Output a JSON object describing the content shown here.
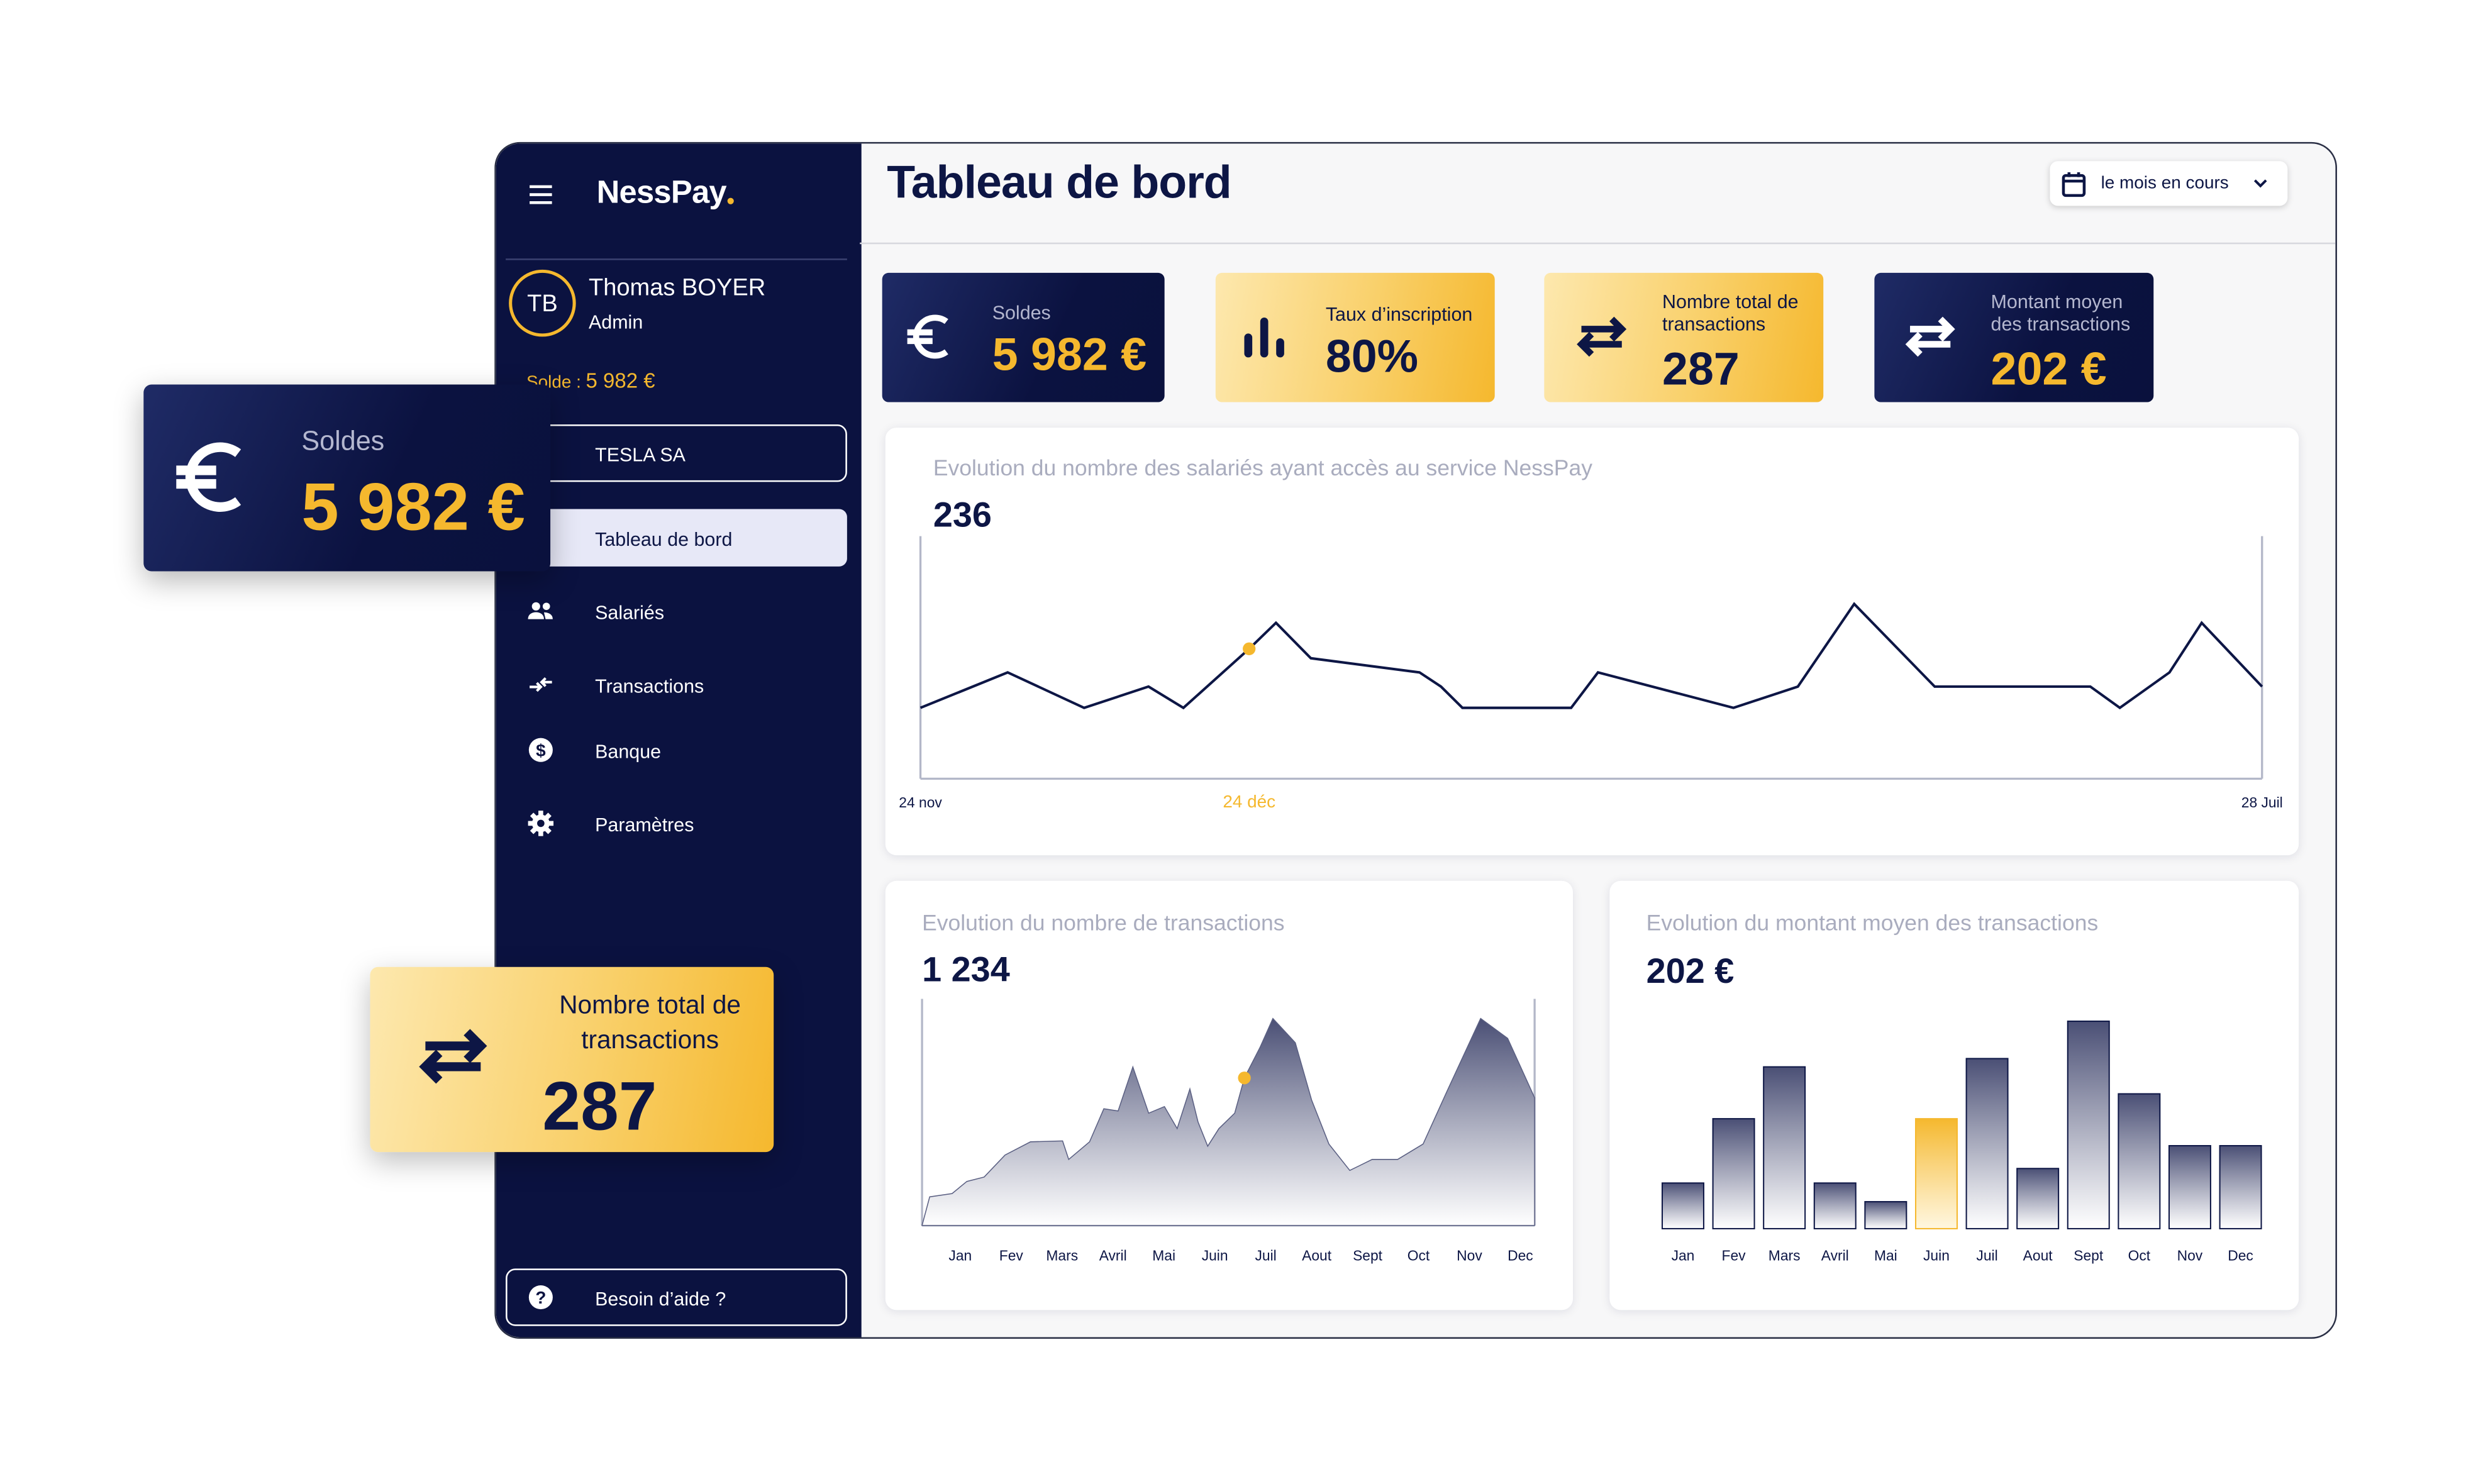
{
  "sidebar": {
    "brand": "NessPay",
    "user": {
      "initials": "TB",
      "name": "Thomas BOYER",
      "role": "Admin"
    },
    "balance_label": "Solde :",
    "balance_value": "5 982 €",
    "company": "TESLA SA",
    "menu": [
      "Tableau de bord",
      "Salariés",
      "Transactions",
      "Banque",
      "Paramètres"
    ],
    "help": "Besoin d’aide ?"
  },
  "header": {
    "title": "Tableau de bord",
    "period": "le mois en cours"
  },
  "kpis": [
    {
      "label": "Soldes",
      "value": "5 982 €"
    },
    {
      "label": "Taux d’inscription",
      "value": "80%"
    },
    {
      "label": "Nombre total de transactions",
      "value": "287"
    },
    {
      "label": "Montant moyen des transactions",
      "value": "202 €"
    }
  ],
  "chart_data": [
    {
      "type": "line",
      "title": "Evolution du nombre des salariés ayant accès au service NessPay",
      "headline": "236",
      "x": [
        0,
        6.5,
        12.2,
        17,
        19.6,
        24.5,
        26.5,
        29.1,
        37.2,
        38.8,
        40.4,
        48.5,
        50.5,
        60.6,
        65.4,
        69.6,
        75.6,
        87.2,
        89.4,
        93.1,
        95.5,
        100
      ],
      "values": [
        30,
        45,
        30,
        39,
        30,
        55,
        66,
        51,
        45,
        39,
        30,
        30,
        45,
        30,
        39,
        74,
        39,
        39,
        30,
        45,
        66,
        39
      ],
      "xlim": [
        0,
        100
      ],
      "ylim": [
        0,
        100
      ],
      "xticks": [
        {
          "value": 0,
          "label": "24 nov"
        },
        {
          "value": 24.5,
          "label": "24 déc"
        },
        {
          "value": 100,
          "label": "28 Juil"
        }
      ],
      "color": "#0d1645",
      "highlight": 5,
      "highlight_color": "#f5b82e"
    },
    {
      "type": "area",
      "title": "Evolution du nombre de transactions",
      "headline": "1 234",
      "x": [
        -0.75,
        -0.6,
        -0.16,
        0.13,
        0.47,
        0.88,
        1.38,
        2.01,
        2.13,
        2.54,
        2.82,
        3.1,
        3.39,
        3.7,
        4.01,
        4.26,
        4.51,
        4.67,
        4.86,
        5.08,
        5.39,
        5.58,
        5.89,
        6.14,
        6.58,
        6.9,
        7.24,
        7.65,
        8.09,
        8.59,
        9.09,
        9.56,
        10.22,
        10.75,
        11.28
      ],
      "values": [
        0,
        13,
        14.5,
        20,
        22,
        32,
        38,
        38.4,
        30,
        38,
        53,
        52,
        72,
        51,
        54,
        44,
        62,
        47,
        36,
        44,
        51,
        67,
        81,
        94,
        83,
        57,
        37,
        25,
        30,
        30,
        37,
        61,
        94,
        85,
        58
      ],
      "xlim": [
        -0.75,
        11.28
      ],
      "ylim": [
        0,
        100
      ],
      "xticks": [
        {
          "value": 0,
          "label": "Jan"
        },
        {
          "value": 1,
          "label": "Fev"
        },
        {
          "value": 2,
          "label": "Mars"
        },
        {
          "value": 3,
          "label": "Avril"
        },
        {
          "value": 4,
          "label": "Mai"
        },
        {
          "value": 5,
          "label": "Juin"
        },
        {
          "value": 6,
          "label": "Juil"
        },
        {
          "value": 7,
          "label": "Aout"
        },
        {
          "value": 8,
          "label": "Sept"
        },
        {
          "value": 9,
          "label": "Oct"
        },
        {
          "value": 10,
          "label": "Nov"
        },
        {
          "value": 11,
          "label": "Dec"
        }
      ],
      "color": "#0d1645",
      "highlight": 21,
      "highlight_color": "#f5b82e"
    },
    {
      "type": "bar",
      "title": "Evolution du montant moyen des transactions",
      "headline": "202 €",
      "categories": [
        "Jan",
        "Fev",
        "Mars",
        "Avril",
        "Mai",
        "Juin",
        "Juil",
        "Aout",
        "Sept",
        "Oct",
        "Nov",
        "Dec"
      ],
      "values": [
        22,
        53,
        78,
        22,
        13,
        53,
        82,
        29,
        100,
        65,
        40,
        40
      ],
      "ylim": [
        0,
        100
      ],
      "color": "#0d1645",
      "highlight": 5,
      "highlight_color": "#f5b82e"
    }
  ]
}
